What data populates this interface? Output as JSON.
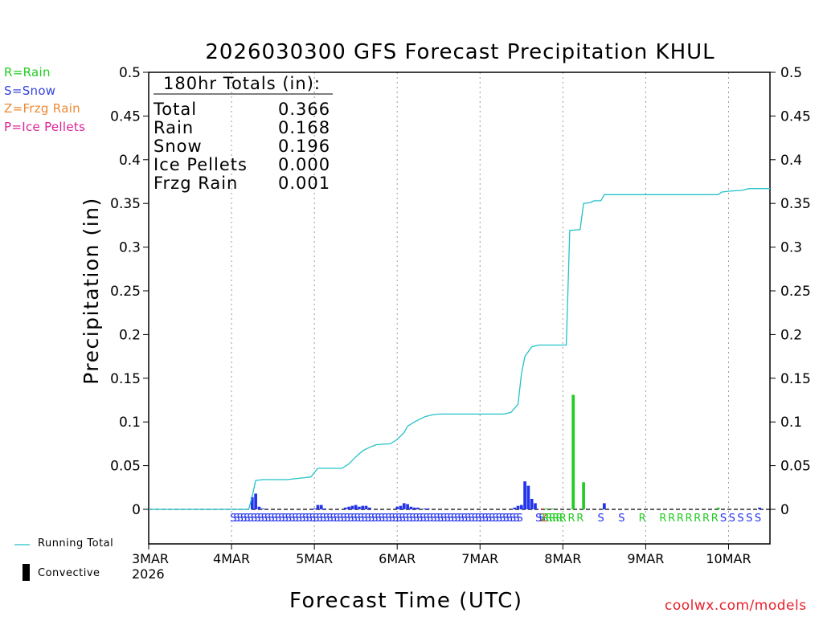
{
  "title": "2026030300 GFS Forecast Precipitation KHUL",
  "credit": "coolwx.com/models",
  "precip_key": [
    {
      "label": "R=Rain",
      "color": "#22cc22"
    },
    {
      "label": "S=Snow",
      "color": "#3344dd"
    },
    {
      "label": "Z=Frzg Rain",
      "color": "#ee8833"
    },
    {
      "label": "P=Ice Pellets",
      "color": "#dd2299"
    }
  ],
  "legend": {
    "running_total": "Running Total",
    "convective": "Convective"
  },
  "totals": {
    "heading": "180hr Totals (in):",
    "rows": [
      {
        "label": "Total",
        "value": "0.366"
      },
      {
        "label": "Rain",
        "value": "0.168"
      },
      {
        "label": "Snow",
        "value": "0.196"
      },
      {
        "label": "Ice Pellets",
        "value": "0.000"
      },
      {
        "label": "Frzg Rain",
        "value": "0.001"
      }
    ]
  },
  "colors": {
    "rain": "#22cc22",
    "snow": "#2233ee",
    "frzg": "#ee3322",
    "line": "#22c2c8",
    "grid": "#999999"
  },
  "chart_data": {
    "type": "bar",
    "title": "2026030300 GFS Forecast Precipitation KHUL",
    "xlabel": "Forecast Time (UTC)",
    "ylabel": "Precipitation (in)",
    "xlim": [
      0,
      180
    ],
    "ylim": [
      -0.04,
      0.5
    ],
    "yticks": [
      0,
      0.05,
      0.1,
      0.15,
      0.2,
      0.25,
      0.3,
      0.35,
      0.4,
      0.45,
      0.5
    ],
    "ytick_labels": [
      "0",
      "0.05",
      "0.1",
      "0.15",
      "0.2",
      "0.25",
      "0.3",
      "0.35",
      "0.4",
      "0.45",
      "0.5"
    ],
    "x_ticks": [
      {
        "hour": 0,
        "label": "3MAR",
        "sub": "2026"
      },
      {
        "hour": 24,
        "label": "4MAR"
      },
      {
        "hour": 48,
        "label": "5MAR"
      },
      {
        "hour": 72,
        "label": "6MAR"
      },
      {
        "hour": 96,
        "label": "7MAR"
      },
      {
        "hour": 120,
        "label": "8MAR"
      },
      {
        "hour": 144,
        "label": "9MAR"
      },
      {
        "hour": 168,
        "label": "10MAR"
      }
    ],
    "bars": [
      {
        "hour": 30,
        "value": 0.014,
        "type": "snow"
      },
      {
        "hour": 31,
        "value": 0.018,
        "type": "snow"
      },
      {
        "hour": 32,
        "value": 0.003,
        "type": "snow"
      },
      {
        "hour": 33,
        "value": 0.001,
        "type": "snow"
      },
      {
        "hour": 48,
        "value": 0.001,
        "type": "snow"
      },
      {
        "hour": 49,
        "value": 0.005,
        "type": "snow"
      },
      {
        "hour": 50,
        "value": 0.005,
        "type": "snow"
      },
      {
        "hour": 51,
        "value": 0.001,
        "type": "snow"
      },
      {
        "hour": 57,
        "value": 0.002,
        "type": "snow"
      },
      {
        "hour": 58,
        "value": 0.003,
        "type": "snow"
      },
      {
        "hour": 59,
        "value": 0.004,
        "type": "snow"
      },
      {
        "hour": 60,
        "value": 0.005,
        "type": "snow"
      },
      {
        "hour": 61,
        "value": 0.003,
        "type": "snow"
      },
      {
        "hour": 62,
        "value": 0.004,
        "type": "snow"
      },
      {
        "hour": 63,
        "value": 0.004,
        "type": "snow"
      },
      {
        "hour": 64,
        "value": 0.002,
        "type": "snow"
      },
      {
        "hour": 72,
        "value": 0.003,
        "type": "snow"
      },
      {
        "hour": 73,
        "value": 0.004,
        "type": "snow"
      },
      {
        "hour": 74,
        "value": 0.007,
        "type": "snow"
      },
      {
        "hour": 75,
        "value": 0.006,
        "type": "snow"
      },
      {
        "hour": 76,
        "value": 0.003,
        "type": "snow"
      },
      {
        "hour": 77,
        "value": 0.002,
        "type": "snow"
      },
      {
        "hour": 78,
        "value": 0.002,
        "type": "snow"
      },
      {
        "hour": 80,
        "value": 0.001,
        "type": "snow"
      },
      {
        "hour": 81,
        "value": 0.001,
        "type": "snow"
      },
      {
        "hour": 106,
        "value": 0.002,
        "type": "snow"
      },
      {
        "hour": 107,
        "value": 0.004,
        "type": "snow"
      },
      {
        "hour": 108,
        "value": 0.005,
        "type": "snow"
      },
      {
        "hour": 109,
        "value": 0.032,
        "type": "snow"
      },
      {
        "hour": 110,
        "value": 0.027,
        "type": "snow"
      },
      {
        "hour": 111,
        "value": 0.012,
        "type": "snow"
      },
      {
        "hour": 112,
        "value": 0.007,
        "type": "snow"
      },
      {
        "hour": 114,
        "value": 0.001,
        "type": "frzg"
      },
      {
        "hour": 115,
        "value": 0.001,
        "type": "rain"
      },
      {
        "hour": 117,
        "value": 0.001,
        "type": "rain"
      },
      {
        "hour": 123,
        "value": 0.131,
        "type": "rain"
      },
      {
        "hour": 126,
        "value": 0.031,
        "type": "rain"
      },
      {
        "hour": 132,
        "value": 0.007,
        "type": "snow"
      },
      {
        "hour": 165,
        "value": 0.002,
        "type": "rain"
      },
      {
        "hour": 177,
        "value": 0.002,
        "type": "snow"
      }
    ],
    "running_total": [
      [
        0,
        0
      ],
      [
        29,
        0
      ],
      [
        30,
        0.015
      ],
      [
        31,
        0.033
      ],
      [
        33,
        0.034
      ],
      [
        40,
        0.034
      ],
      [
        47,
        0.037
      ],
      [
        49,
        0.047
      ],
      [
        56,
        0.047
      ],
      [
        58,
        0.052
      ],
      [
        60,
        0.06
      ],
      [
        62,
        0.067
      ],
      [
        64,
        0.071
      ],
      [
        66,
        0.074
      ],
      [
        70,
        0.075
      ],
      [
        72,
        0.08
      ],
      [
        74,
        0.088
      ],
      [
        75,
        0.095
      ],
      [
        77,
        0.1
      ],
      [
        80,
        0.106
      ],
      [
        82,
        0.108
      ],
      [
        84,
        0.109
      ],
      [
        103,
        0.109
      ],
      [
        105,
        0.111
      ],
      [
        107,
        0.12
      ],
      [
        108,
        0.155
      ],
      [
        109,
        0.175
      ],
      [
        111,
        0.186
      ],
      [
        113,
        0.188
      ],
      [
        120,
        0.188
      ],
      [
        121,
        0.188
      ],
      [
        122,
        0.319
      ],
      [
        125,
        0.32
      ],
      [
        126,
        0.35
      ],
      [
        128,
        0.351
      ],
      [
        129,
        0.353
      ],
      [
        131,
        0.353
      ],
      [
        132,
        0.36
      ],
      [
        165,
        0.36
      ],
      [
        166,
        0.363
      ],
      [
        168,
        0.364
      ],
      [
        172,
        0.365
      ],
      [
        174,
        0.367
      ],
      [
        180,
        0.367
      ]
    ],
    "type_sequence": [
      {
        "start": 24.5,
        "end": 108,
        "type": "snow",
        "letter": "S"
      },
      {
        "start": 113,
        "end": 114,
        "type": "snow",
        "letter": "S"
      },
      {
        "start": 114.5,
        "end": 115,
        "type": "frzg",
        "letter": "Z"
      },
      {
        "start": 115,
        "end": 119,
        "type": "rain",
        "letter": "R"
      },
      {
        "start": 120,
        "end": 126,
        "type": "rain",
        "letter": "R",
        "spacing": 2.5
      },
      {
        "start": 131,
        "end": 131,
        "type": "snow",
        "letter": "S"
      },
      {
        "start": 137,
        "end": 137,
        "type": "snow",
        "letter": "S"
      },
      {
        "start": 143,
        "end": 143,
        "type": "rain",
        "letter": "R"
      },
      {
        "start": 149,
        "end": 164,
        "type": "rain",
        "letter": "R",
        "spacing": 2.5
      },
      {
        "start": 166.5,
        "end": 177,
        "type": "snow",
        "letter": "S",
        "spacing": 2.5
      }
    ]
  }
}
